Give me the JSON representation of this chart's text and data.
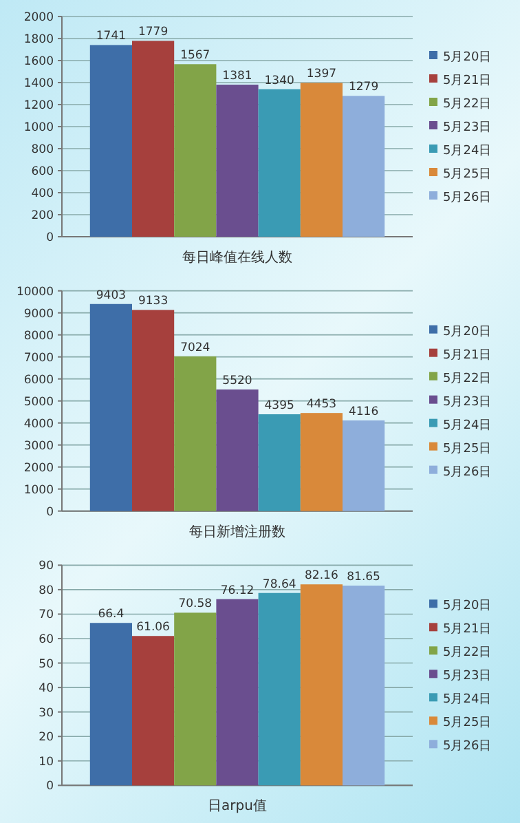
{
  "chart_data": [
    {
      "type": "bar",
      "xlabel": "每日峰值在线人数",
      "categories": [
        null
      ],
      "ylim": [
        0,
        2000
      ],
      "yticks": [
        0,
        200,
        400,
        600,
        800,
        1000,
        1200,
        1400,
        1600,
        1800,
        2000
      ],
      "grid": "y",
      "legend": "right",
      "data_labels": true,
      "series": [
        {
          "name": "5月20日",
          "color": "#3e6ea8",
          "values": [
            1741
          ]
        },
        {
          "name": "5月21日",
          "color": "#a6403d",
          "values": [
            1779
          ]
        },
        {
          "name": "5月22日",
          "color": "#82a448",
          "values": [
            1567
          ]
        },
        {
          "name": "5月23日",
          "color": "#6a4e8f",
          "values": [
            1381
          ]
        },
        {
          "name": "5月24日",
          "color": "#3a9bb4",
          "values": [
            1340
          ]
        },
        {
          "name": "5月25日",
          "color": "#d9893a",
          "values": [
            1397
          ]
        },
        {
          "name": "5月26日",
          "color": "#8eaedb",
          "values": [
            1279
          ]
        }
      ]
    },
    {
      "type": "bar",
      "xlabel": "每日新增注册数",
      "categories": [
        null
      ],
      "ylim": [
        0,
        10000
      ],
      "yticks": [
        0,
        1000,
        2000,
        3000,
        4000,
        5000,
        6000,
        7000,
        8000,
        9000,
        10000
      ],
      "grid": "y",
      "legend": "right",
      "data_labels": true,
      "series": [
        {
          "name": "5月20日",
          "color": "#3e6ea8",
          "values": [
            9403
          ]
        },
        {
          "name": "5月21日",
          "color": "#a6403d",
          "values": [
            9133
          ]
        },
        {
          "name": "5月22日",
          "color": "#82a448",
          "values": [
            7024
          ]
        },
        {
          "name": "5月23日",
          "color": "#6a4e8f",
          "values": [
            5520
          ]
        },
        {
          "name": "5月24日",
          "color": "#3a9bb4",
          "values": [
            4395
          ]
        },
        {
          "name": "5月25日",
          "color": "#d9893a",
          "values": [
            4453
          ]
        },
        {
          "name": "5月26日",
          "color": "#8eaedb",
          "values": [
            4116
          ]
        }
      ]
    },
    {
      "type": "bar",
      "xlabel": "日arpu值",
      "categories": [
        null
      ],
      "ylim": [
        0,
        90
      ],
      "yticks": [
        0,
        10,
        20,
        30,
        40,
        50,
        60,
        70,
        80,
        90
      ],
      "grid": "y",
      "legend": "right",
      "data_labels": true,
      "series": [
        {
          "name": "5月20日",
          "color": "#3e6ea8",
          "values": [
            66.4
          ]
        },
        {
          "name": "5月21日",
          "color": "#a6403d",
          "values": [
            61.06
          ]
        },
        {
          "name": "5月22日",
          "color": "#82a448",
          "values": [
            70.58
          ]
        },
        {
          "name": "5月23日",
          "color": "#6a4e8f",
          "values": [
            76.12
          ]
        },
        {
          "name": "5月24日",
          "color": "#3a9bb4",
          "values": [
            78.64
          ]
        },
        {
          "name": "5月25日",
          "color": "#d9893a",
          "values": [
            82.16
          ]
        },
        {
          "name": "5月26日",
          "color": "#8eaedb",
          "values": [
            81.65
          ]
        }
      ]
    }
  ]
}
